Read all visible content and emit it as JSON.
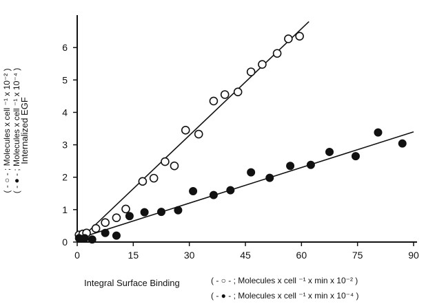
{
  "chart_data": {
    "type": "scatter",
    "title": "",
    "xlabel": "Integral Surface Binding",
    "xlabel_units": [
      "( - ○ - ; Molecules x cell ⁻¹ x min x 10⁻² )",
      "( - ● - ; Molecules x cell ⁻¹ x min x 10⁻⁴ )"
    ],
    "ylabel": "Internalized EGF",
    "ylabel_units": [
      "( - ○ - ; Molecules x cell ⁻¹  x 10⁻² )",
      "( - ● - ; Molecules x cell ⁻¹  x 10⁻⁴ )"
    ],
    "xlim": [
      0,
      90
    ],
    "ylim": [
      0,
      7
    ],
    "xticks": [
      0,
      15,
      30,
      45,
      60,
      75,
      90
    ],
    "yticks": [
      0,
      1,
      2,
      3,
      4,
      5,
      6
    ],
    "grid": false,
    "legend": "none",
    "series": [
      {
        "marker": "open-circle",
        "x": [
          0.5,
          1.5,
          2.5,
          5,
          7.5,
          10.5,
          13,
          17.5,
          20.5,
          23.5,
          26,
          29,
          32.5,
          36.5,
          39.5,
          43,
          46.5,
          49.5,
          53.5,
          56.5,
          59.5
        ],
        "y": [
          0.22,
          0.25,
          0.28,
          0.42,
          0.6,
          0.75,
          1.02,
          1.87,
          1.97,
          2.48,
          2.35,
          3.45,
          3.33,
          4.35,
          4.55,
          4.63,
          5.25,
          5.48,
          5.82,
          6.27,
          6.35
        ],
        "fit": {
          "x": [
            0,
            62
          ],
          "y": [
            0.0,
            6.8
          ]
        }
      },
      {
        "marker": "filled-circle",
        "x": [
          0.5,
          2,
          4,
          7.5,
          10.5,
          14,
          18,
          22.5,
          27,
          31,
          36.5,
          41,
          46.5,
          51.5,
          57,
          62.5,
          67.5,
          74.5,
          80.5,
          87
        ],
        "y": [
          0.12,
          0.12,
          0.08,
          0.28,
          0.2,
          0.8,
          0.92,
          0.93,
          0.98,
          1.57,
          1.45,
          1.6,
          2.15,
          1.98,
          2.35,
          2.38,
          2.78,
          2.65,
          3.38,
          3.04
        ],
        "fit": {
          "x": [
            0,
            90
          ],
          "y": [
            0.1,
            3.4
          ]
        }
      }
    ]
  }
}
